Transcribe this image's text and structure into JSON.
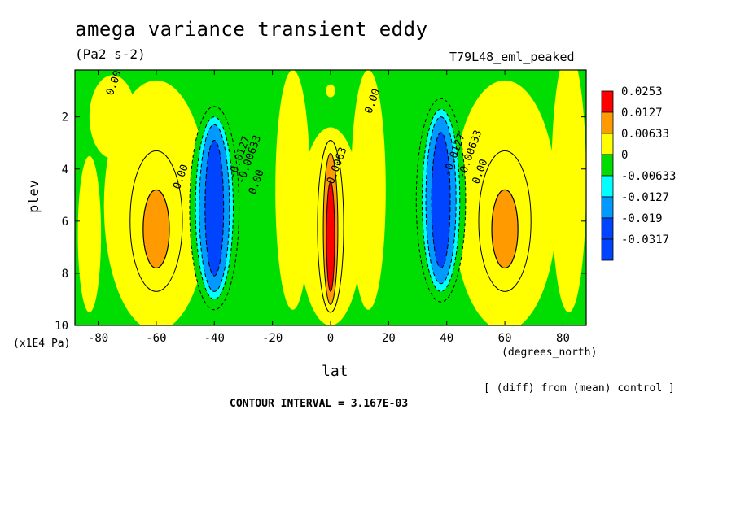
{
  "header": {
    "title": "amega variance transient eddy",
    "units": "(Pa2 s-2)",
    "run": "T79L48_eml_peaked"
  },
  "footer": {
    "diff_note": "[ (diff) from (mean) control ]",
    "contour_interval": "CONTOUR INTERVAL = 3.167E-03"
  },
  "chart_data": {
    "type": "heatmap",
    "title": "amega variance transient eddy",
    "subtitle": "(Pa2 s-2)",
    "xlabel": "lat",
    "x_units": "(degrees_north)",
    "ylabel": "plev",
    "y_units": "(x1E4 Pa)",
    "xlim": [
      -88,
      88
    ],
    "ylim": [
      10,
      0.2
    ],
    "x_ticks": [
      -80,
      -60,
      -40,
      -20,
      0,
      20,
      40,
      60,
      80
    ],
    "y_ticks": [
      2,
      4,
      6,
      8,
      10
    ],
    "contour_interval": 0.003167,
    "legend": {
      "placement": "right",
      "levels": [
        "0.0253",
        "0.0127",
        "0.00633",
        "0",
        "-0.00633",
        "-0.0127",
        "-0.019",
        "-0.0317"
      ],
      "colors": [
        "#ff0000",
        "#ff9a00",
        "#ffff00",
        "#00dd00",
        "#00ffff",
        "#0099ff",
        "#0044ff",
        "#0044ff"
      ]
    },
    "features": [
      {
        "kind": "max",
        "lat": 0,
        "plev": 6.5,
        "level": "0.0253"
      },
      {
        "kind": "max",
        "lat": -60,
        "plev": 6.3,
        "level": "0.00633"
      },
      {
        "kind": "max",
        "lat": 60,
        "plev": 6.3,
        "level": "0.00633"
      },
      {
        "kind": "min",
        "lat": -40,
        "plev": 5.5,
        "level": "-0.019"
      },
      {
        "kind": "min",
        "lat": 38,
        "plev": 5.2,
        "level": "-0.019"
      }
    ],
    "contour_labels": [
      {
        "text": "0.00",
        "lat": -75,
        "plev": 1.2
      },
      {
        "text": "0.00",
        "lat": 14,
        "plev": 1.9
      },
      {
        "text": "0.00",
        "lat": -52,
        "plev": 4.8
      },
      {
        "text": "-0.0127",
        "lat": -33,
        "plev": 4.4
      },
      {
        "text": "-0.00633",
        "lat": -30,
        "plev": 4.6
      },
      {
        "text": "0.00",
        "lat": -26,
        "plev": 5.0
      },
      {
        "text": "0.0063",
        "lat": 1,
        "plev": 4.6
      },
      {
        "text": "-0.0127",
        "lat": 41,
        "plev": 4.3
      },
      {
        "text": "-0.00633",
        "lat": 46,
        "plev": 4.4
      },
      {
        "text": "0.00",
        "lat": 51,
        "plev": 4.6
      }
    ],
    "colors": {
      "red": "#ff0000",
      "orange": "#ff9a00",
      "yellow": "#ffff00",
      "green": "#00dd00",
      "cyan": "#00ffff",
      "lightblue": "#0099ff",
      "blue": "#0044ff"
    }
  }
}
